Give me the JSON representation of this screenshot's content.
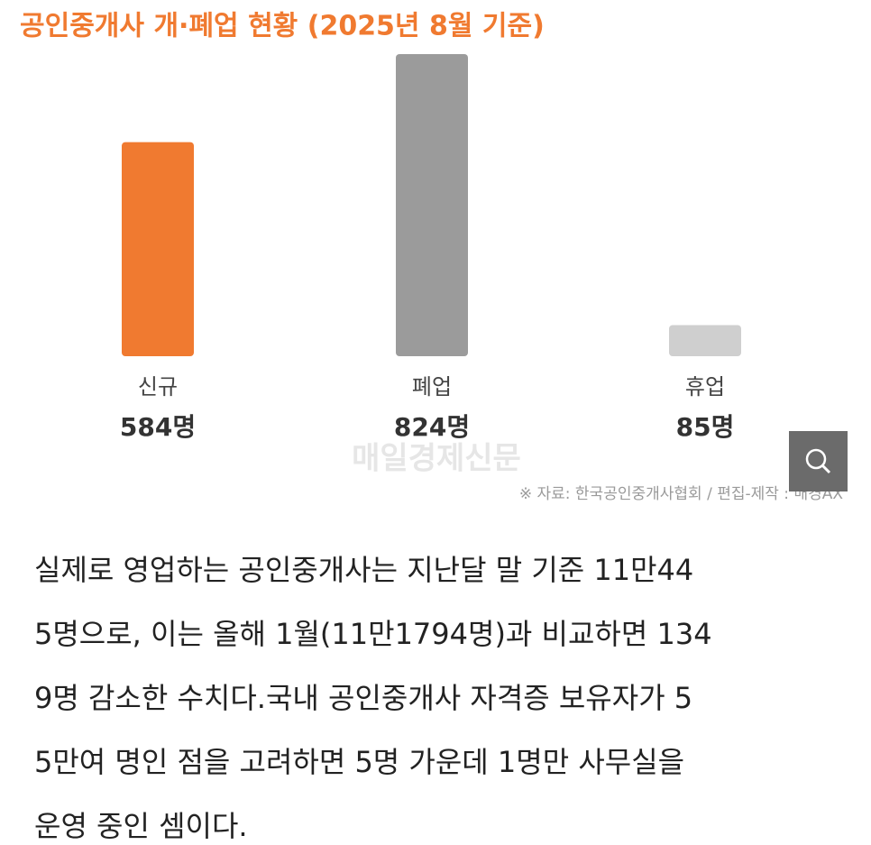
{
  "chart_data": {
    "type": "bar",
    "title": "공인중개사 개·폐업 현황 (2025년 8월 기준)",
    "categories": [
      "신규",
      "폐업",
      "휴업"
    ],
    "values": [
      584,
      824,
      85
    ],
    "value_labels": [
      "584명",
      "824명",
      "85명"
    ],
    "colors": [
      "#f07a30",
      "#9b9b9b",
      "#cfcfcf"
    ],
    "watermark": "매일경제신문",
    "source": "※ 자료: 한국공인중개사협회 / 편집-제작 : 매경AX"
  },
  "article": {
    "lines": [
      "실제로 영업하는 공인중개사는 지난달 말 기준 11만44",
      "5명으로, 이는 올해 1월(11만1794명)과 비교하면 134",
      "9명 감소한 수치다.국내 공인중개사 자격증 보유자가 5",
      "5만여 명인 점을 고려하면 5명 가운데 1명만 사무실을",
      "운영 중인 셈이다."
    ]
  }
}
